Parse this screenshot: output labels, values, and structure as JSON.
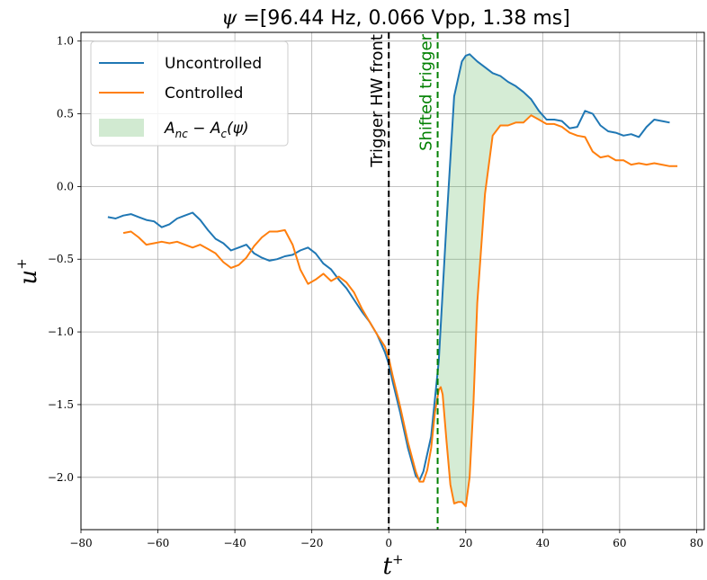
{
  "chart_data": {
    "type": "line",
    "title": "ψ =[96.44 Hz, 0.066 Vpp, 1.38 ms]",
    "xlabel": "t+",
    "ylabel": "u+",
    "xlim": [
      -80,
      82
    ],
    "ylim": [
      -2.36,
      1.06
    ],
    "xticks": [
      -80,
      -60,
      -40,
      -20,
      0,
      20,
      40,
      60,
      80
    ],
    "yticks": [
      -2.0,
      -1.5,
      -1.0,
      -0.5,
      0.0,
      0.5,
      1.0
    ],
    "grid": true,
    "legend_position": "top-left",
    "series": [
      {
        "name": "Uncontrolled",
        "color": "#1f77b4",
        "x": [
          -73,
          -71,
          -69,
          -67,
          -65,
          -63,
          -61,
          -59,
          -57,
          -55,
          -53,
          -51,
          -49,
          -47,
          -45,
          -43,
          -41,
          -39,
          -37,
          -35,
          -33,
          -31,
          -29,
          -27,
          -25,
          -23,
          -21,
          -19,
          -17,
          -15,
          -13,
          -11,
          -9,
          -7,
          -5,
          -3,
          -1,
          0,
          1,
          3,
          5,
          7,
          8,
          9,
          11,
          13,
          15,
          17,
          19,
          20,
          21,
          23,
          25,
          27,
          29,
          31,
          33,
          35,
          37,
          39,
          41,
          43,
          45,
          47,
          49,
          51,
          53,
          55,
          57,
          59,
          61,
          63,
          65,
          67,
          69,
          71,
          73
        ],
        "y": [
          -0.21,
          -0.22,
          -0.2,
          -0.19,
          -0.21,
          -0.23,
          -0.24,
          -0.28,
          -0.26,
          -0.22,
          -0.2,
          -0.18,
          -0.23,
          -0.3,
          -0.36,
          -0.39,
          -0.44,
          -0.42,
          -0.4,
          -0.46,
          -0.49,
          -0.51,
          -0.5,
          -0.48,
          -0.47,
          -0.44,
          -0.42,
          -0.46,
          -0.53,
          -0.57,
          -0.64,
          -0.7,
          -0.78,
          -0.86,
          -0.93,
          -1.02,
          -1.14,
          -1.22,
          -1.34,
          -1.56,
          -1.8,
          -1.99,
          -2.02,
          -1.96,
          -1.72,
          -1.2,
          -0.25,
          0.62,
          0.86,
          0.9,
          0.91,
          0.86,
          0.82,
          0.78,
          0.76,
          0.72,
          0.69,
          0.65,
          0.6,
          0.52,
          0.46,
          0.46,
          0.45,
          0.4,
          0.41,
          0.52,
          0.5,
          0.42,
          0.38,
          0.37,
          0.35,
          0.36,
          0.34,
          0.41,
          0.46,
          0.45,
          0.44
        ]
      },
      {
        "name": "Controlled",
        "color": "#ff7f0e",
        "x": [
          -69,
          -67,
          -65,
          -63,
          -61,
          -59,
          -57,
          -55,
          -53,
          -51,
          -49,
          -47,
          -45,
          -43,
          -41,
          -39,
          -37,
          -35,
          -33,
          -31,
          -29,
          -27,
          -25,
          -23,
          -21,
          -19,
          -17,
          -15,
          -13,
          -11,
          -9,
          -7,
          -5,
          -3,
          -1,
          0,
          1,
          3,
          5,
          7,
          8,
          9,
          10,
          11,
          12,
          13,
          13.5,
          14,
          15,
          16,
          17,
          18,
          19,
          20,
          21,
          22,
          23,
          25,
          27,
          29,
          31,
          33,
          35,
          37,
          39,
          41,
          43,
          45,
          47,
          49,
          51,
          53,
          55,
          57,
          59,
          61,
          63,
          65,
          67,
          69,
          71,
          73,
          75
        ],
        "y": [
          -0.32,
          -0.31,
          -0.35,
          -0.4,
          -0.39,
          -0.38,
          -0.39,
          -0.38,
          -0.4,
          -0.42,
          -0.4,
          -0.43,
          -0.46,
          -0.52,
          -0.56,
          -0.54,
          -0.49,
          -0.41,
          -0.35,
          -0.31,
          -0.31,
          -0.3,
          -0.4,
          -0.57,
          -0.67,
          -0.64,
          -0.6,
          -0.65,
          -0.62,
          -0.66,
          -0.73,
          -0.84,
          -0.93,
          -1.02,
          -1.1,
          -1.18,
          -1.3,
          -1.52,
          -1.76,
          -1.96,
          -2.03,
          -2.03,
          -1.95,
          -1.8,
          -1.55,
          -1.4,
          -1.38,
          -1.43,
          -1.75,
          -2.05,
          -2.18,
          -2.17,
          -2.17,
          -2.2,
          -2.0,
          -1.5,
          -0.8,
          -0.05,
          0.35,
          0.42,
          0.42,
          0.44,
          0.44,
          0.49,
          0.46,
          0.43,
          0.43,
          0.41,
          0.37,
          0.35,
          0.34,
          0.24,
          0.2,
          0.21,
          0.18,
          0.18,
          0.15,
          0.16,
          0.15,
          0.16,
          0.15,
          0.14,
          0.14
        ]
      }
    ],
    "vlines": [
      {
        "x": 0,
        "color": "#000000",
        "label": "Trigger HW front"
      },
      {
        "x": 12.7,
        "color": "#008000",
        "label": "Shifted trigger"
      }
    ],
    "fill_between": {
      "label": "A_nc − A_c(ψ)",
      "color": "#2ca02c",
      "opacity": 0.2,
      "x_range": [
        12.7,
        40
      ]
    },
    "legend": [
      {
        "label": "Uncontrolled",
        "kind": "line",
        "color": "#1f77b4"
      },
      {
        "label": "Controlled",
        "kind": "line",
        "color": "#ff7f0e"
      },
      {
        "label_base": "A",
        "label_sub1": "nc",
        "label_mid": " − A",
        "label_sub2": "c",
        "label_end": "(ψ)",
        "kind": "patch",
        "color": "#2ca02c"
      }
    ],
    "tick_labels_x": [
      "−80",
      "−60",
      "−40",
      "−20",
      "0",
      "20",
      "40",
      "60",
      "80"
    ],
    "tick_labels_y": [
      "−2.0",
      "−1.5",
      "−1.0",
      "−0.5",
      "0.0",
      "0.5",
      "1.0"
    ]
  }
}
